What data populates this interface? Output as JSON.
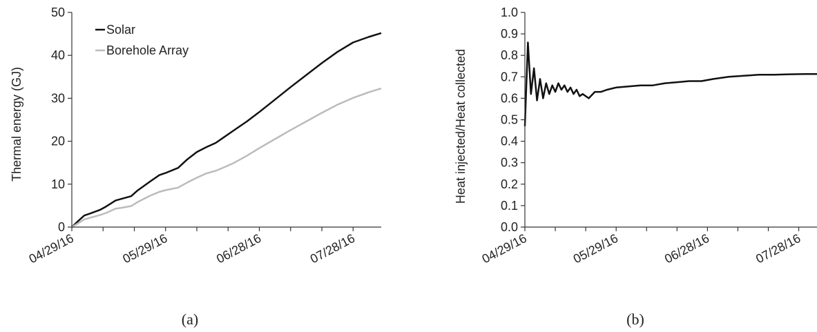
{
  "chart_data": [
    {
      "type": "line",
      "panel_label": "(a)",
      "title": "",
      "xlabel": "",
      "ylabel": "Thermal energy (GJ)",
      "xlim": [
        "2016-04-29",
        "2016-08-06"
      ],
      "ylim": [
        0,
        50
      ],
      "yticks": [
        0,
        10,
        20,
        30,
        40,
        50
      ],
      "xticks": [
        "04/29/16",
        "05/29/16",
        "06/28/16",
        "07/28/16"
      ],
      "xtick_dates": [
        "2016-04-29",
        "2016-05-29",
        "2016-06-28",
        "2016-07-28"
      ],
      "grid": false,
      "legend": "top-left",
      "series": [
        {
          "name": "Solar",
          "color": "#111111",
          "x": [
            "2016-04-29",
            "2016-05-01",
            "2016-05-03",
            "2016-05-05",
            "2016-05-08",
            "2016-05-10",
            "2016-05-13",
            "2016-05-15",
            "2016-05-18",
            "2016-05-20",
            "2016-05-24",
            "2016-05-27",
            "2016-05-29",
            "2016-06-02",
            "2016-06-05",
            "2016-06-08",
            "2016-06-11",
            "2016-06-14",
            "2016-06-17",
            "2016-06-20",
            "2016-06-24",
            "2016-06-28",
            "2016-07-03",
            "2016-07-08",
            "2016-07-13",
            "2016-07-18",
            "2016-07-23",
            "2016-07-28",
            "2016-08-02",
            "2016-08-06"
          ],
          "y": [
            0.0,
            1.4,
            2.7,
            3.2,
            4.0,
            4.8,
            6.2,
            6.6,
            7.2,
            8.5,
            10.6,
            12.1,
            12.6,
            13.8,
            15.8,
            17.5,
            18.6,
            19.6,
            21.1,
            22.6,
            24.6,
            26.8,
            29.7,
            32.6,
            35.4,
            38.2,
            40.8,
            43.0,
            44.3,
            45.2
          ]
        },
        {
          "name": "Borehole Array",
          "color": "#bbbbbb",
          "x": [
            "2016-04-29",
            "2016-05-01",
            "2016-05-03",
            "2016-05-05",
            "2016-05-08",
            "2016-05-10",
            "2016-05-13",
            "2016-05-15",
            "2016-05-18",
            "2016-05-20",
            "2016-05-24",
            "2016-05-27",
            "2016-05-29",
            "2016-06-02",
            "2016-06-05",
            "2016-06-08",
            "2016-06-11",
            "2016-06-14",
            "2016-06-17",
            "2016-06-20",
            "2016-06-24",
            "2016-06-28",
            "2016-07-03",
            "2016-07-08",
            "2016-07-13",
            "2016-07-18",
            "2016-07-23",
            "2016-07-28",
            "2016-08-02",
            "2016-08-06"
          ],
          "y": [
            0.0,
            0.9,
            1.8,
            2.2,
            2.8,
            3.3,
            4.3,
            4.5,
            4.9,
            5.8,
            7.3,
            8.2,
            8.6,
            9.2,
            10.4,
            11.5,
            12.5,
            13.1,
            14.0,
            15.0,
            16.6,
            18.4,
            20.5,
            22.6,
            24.6,
            26.6,
            28.5,
            30.1,
            31.4,
            32.3
          ]
        }
      ]
    },
    {
      "type": "line",
      "panel_label": "(b)",
      "title": "",
      "xlabel": "",
      "ylabel": "Heat injected/Heat collected",
      "xlim": [
        "2016-04-29",
        "2016-08-03"
      ],
      "ylim": [
        0.0,
        1.0
      ],
      "yticks": [
        "0.0",
        "0.1",
        "0.2",
        "0.3",
        "0.4",
        "0.5",
        "0.6",
        "0.7",
        "0.8",
        "0.9",
        "1.0"
      ],
      "xticks": [
        "04/29/16",
        "05/29/16",
        "06/28/16",
        "07/28/16"
      ],
      "xtick_dates": [
        "2016-04-29",
        "2016-05-29",
        "2016-06-28",
        "2016-07-28"
      ],
      "grid": false,
      "legend": "none",
      "series": [
        {
          "color": "#111111",
          "x": [
            "2016-04-29",
            "2016-04-30",
            "2016-05-01",
            "2016-05-02",
            "2016-05-03",
            "2016-05-04",
            "2016-05-05",
            "2016-05-06",
            "2016-05-07",
            "2016-05-08",
            "2016-05-09",
            "2016-05-10",
            "2016-05-11",
            "2016-05-12",
            "2016-05-13",
            "2016-05-14",
            "2016-05-15",
            "2016-05-16",
            "2016-05-17",
            "2016-05-18",
            "2016-05-20",
            "2016-05-22",
            "2016-05-24",
            "2016-05-26",
            "2016-05-29",
            "2016-06-02",
            "2016-06-06",
            "2016-06-10",
            "2016-06-14",
            "2016-06-18",
            "2016-06-22",
            "2016-06-26",
            "2016-06-30",
            "2016-07-05",
            "2016-07-10",
            "2016-07-15",
            "2016-07-20",
            "2016-07-25",
            "2016-07-30",
            "2016-08-03"
          ],
          "y": [
            0.47,
            0.86,
            0.62,
            0.74,
            0.59,
            0.69,
            0.6,
            0.67,
            0.62,
            0.66,
            0.63,
            0.67,
            0.64,
            0.66,
            0.63,
            0.65,
            0.62,
            0.64,
            0.61,
            0.62,
            0.6,
            0.63,
            0.63,
            0.64,
            0.65,
            0.655,
            0.66,
            0.66,
            0.67,
            0.675,
            0.68,
            0.68,
            0.69,
            0.7,
            0.705,
            0.71,
            0.71,
            0.712,
            0.713,
            0.713
          ]
        }
      ]
    }
  ]
}
